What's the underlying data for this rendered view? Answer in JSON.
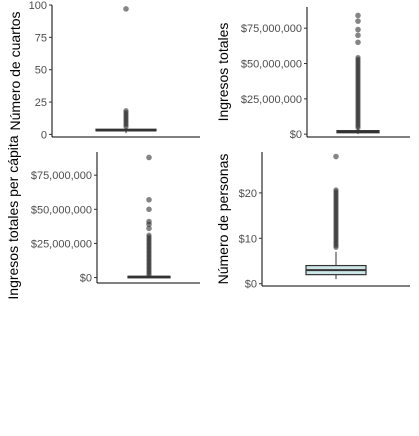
{
  "chart_data": [
    {
      "type": "boxplot",
      "ylabel": "Número de cuartos",
      "ylim": [
        -2,
        100
      ],
      "yticks": [
        0,
        25,
        50,
        75,
        100
      ],
      "ytick_labels": [
        "0",
        "25",
        "50",
        "75",
        "100"
      ],
      "box": {
        "min": 1,
        "q1": 3,
        "median": 3,
        "q3": 4,
        "max": 5
      },
      "outliers_min": 6,
      "outliers_max": 19,
      "outlier_extremes": [
        97
      ],
      "box_fill": "#ffffff"
    },
    {
      "type": "boxplot",
      "ylabel": "Ingresos totales",
      "ylim": [
        -2000000,
        90000000
      ],
      "yticks": [
        0,
        25000000,
        50000000,
        75000000
      ],
      "ytick_labels": [
        "$0",
        "$25,000,000",
        "$50,000,000",
        "$75,000,000"
      ],
      "box": {
        "min": 0,
        "q1": 1000000,
        "median": 1800000,
        "q3": 2500000,
        "max": 4500000
      },
      "outliers_min": 4500000,
      "outliers_max": 55000000,
      "outlier_extremes": [
        65000000,
        70000000,
        74000000,
        80000000,
        84000000
      ],
      "box_fill": "#ffffff"
    },
    {
      "type": "boxplot",
      "ylabel": "Ingresos totales per cápita",
      "ylim": [
        -4000000,
        92000000
      ],
      "yticks": [
        0,
        25000000,
        50000000,
        75000000
      ],
      "ytick_labels": [
        "$0",
        "$25,000,000",
        "$50,000,000",
        "$75,000,000"
      ],
      "box": {
        "min": 0,
        "q1": 300000,
        "median": 600000,
        "q3": 900000,
        "max": 1800000
      },
      "outliers_min": 1800000,
      "outliers_max": 32000000,
      "outlier_extremes": [
        36000000,
        39000000,
        41000000,
        50000000,
        57000000,
        88000000
      ],
      "box_fill": "#ffffff"
    },
    {
      "type": "boxplot",
      "ylabel": "Número de personas",
      "ylim": [
        -0.5,
        29
      ],
      "yticks": [
        0,
        10,
        20
      ],
      "ytick_labels": [
        "$0",
        "$10",
        "$20"
      ],
      "box": {
        "min": 1,
        "q1": 2,
        "median": 3,
        "q3": 4,
        "max": 7
      },
      "outliers_min": 8,
      "outliers_max": 21,
      "outlier_extremes": [
        28
      ],
      "box_fill": "#cde6e8"
    }
  ]
}
